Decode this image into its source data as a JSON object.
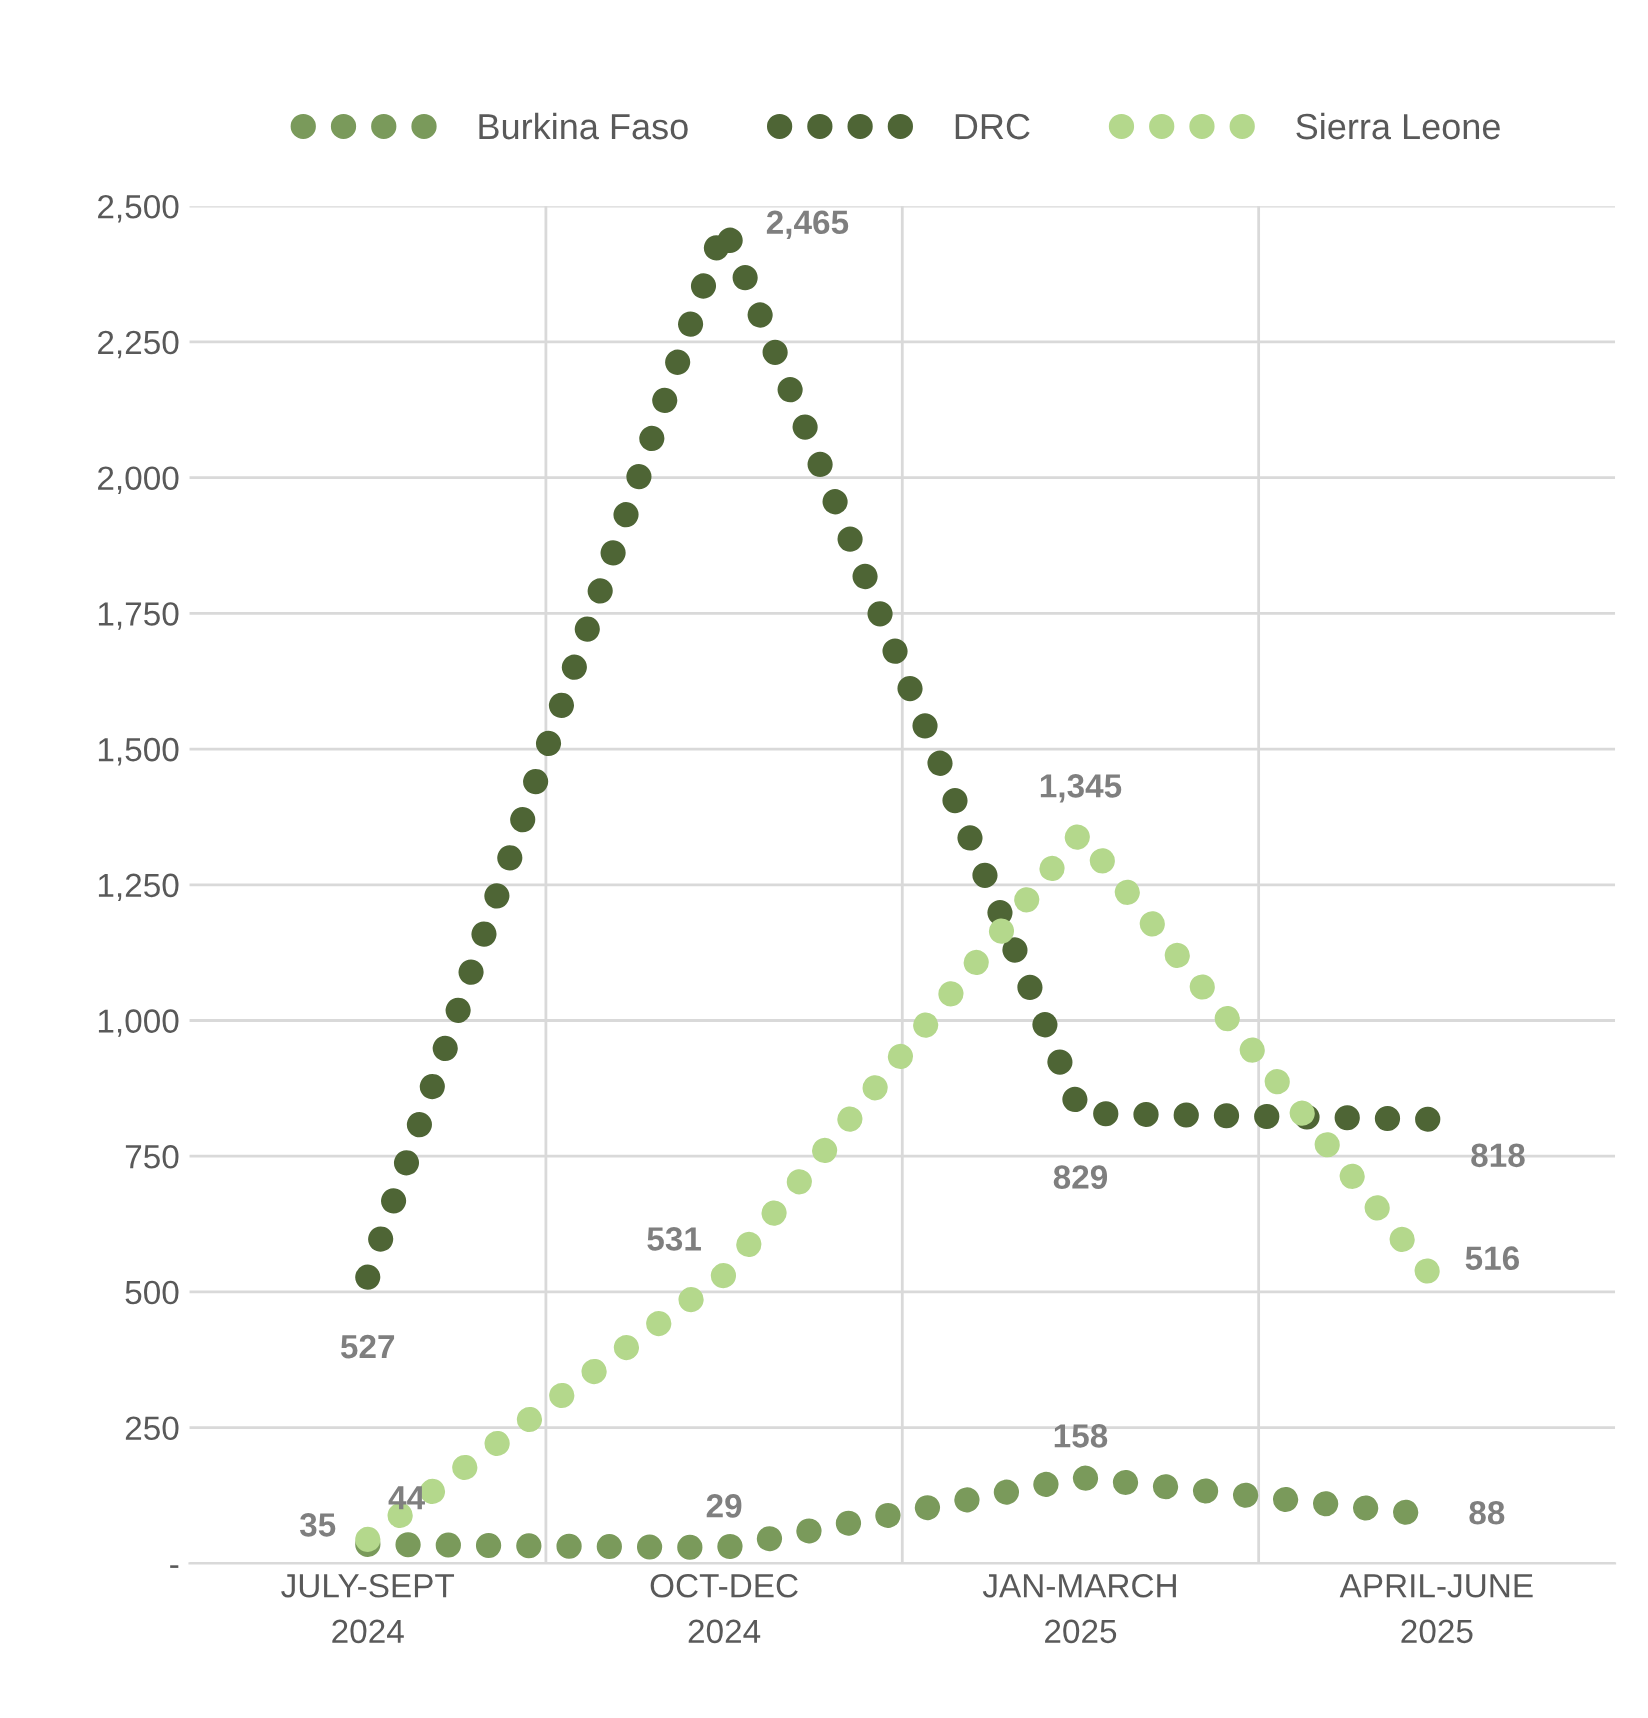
{
  "chart_data": {
    "type": "line",
    "categories": [
      "JULY-SEPT\n2024",
      "OCT-DEC\n2024",
      "JAN-MARCH\n2025",
      "APRIL-JUNE\n2025"
    ],
    "series": [
      {
        "name": "Burkina Faso",
        "color": "#7a9a5b",
        "values": [
          35,
          29,
          158,
          88
        ],
        "value_labels": [
          "35",
          "29",
          "158",
          "88"
        ]
      },
      {
        "name": "DRC",
        "color": "#4e6535",
        "values": [
          527,
          2465,
          829,
          818
        ],
        "value_labels": [
          "527",
          "2,465",
          "829",
          "818"
        ]
      },
      {
        "name": "Sierra Leone",
        "color": "#b4d88c",
        "values": [
          44,
          531,
          1345,
          516
        ],
        "value_labels": [
          "44",
          "531",
          "1,345",
          "516"
        ]
      }
    ],
    "ylim": [
      0,
      2500
    ],
    "yticks": [
      {
        "value": 0,
        "label": "-"
      },
      {
        "value": 250,
        "label": "250"
      },
      {
        "value": 500,
        "label": "500"
      },
      {
        "value": 750,
        "label": "750"
      },
      {
        "value": 1000,
        "label": "1,000"
      },
      {
        "value": 1250,
        "label": "1,250"
      },
      {
        "value": 1500,
        "label": "1,500"
      },
      {
        "value": 1750,
        "label": "1,750"
      },
      {
        "value": 2000,
        "label": "2,000"
      },
      {
        "value": 2250,
        "label": "2,250"
      },
      {
        "value": 2500,
        "label": "2,500"
      }
    ],
    "grid": true,
    "legend": "top",
    "line_style": "dotted",
    "marker": "none"
  }
}
